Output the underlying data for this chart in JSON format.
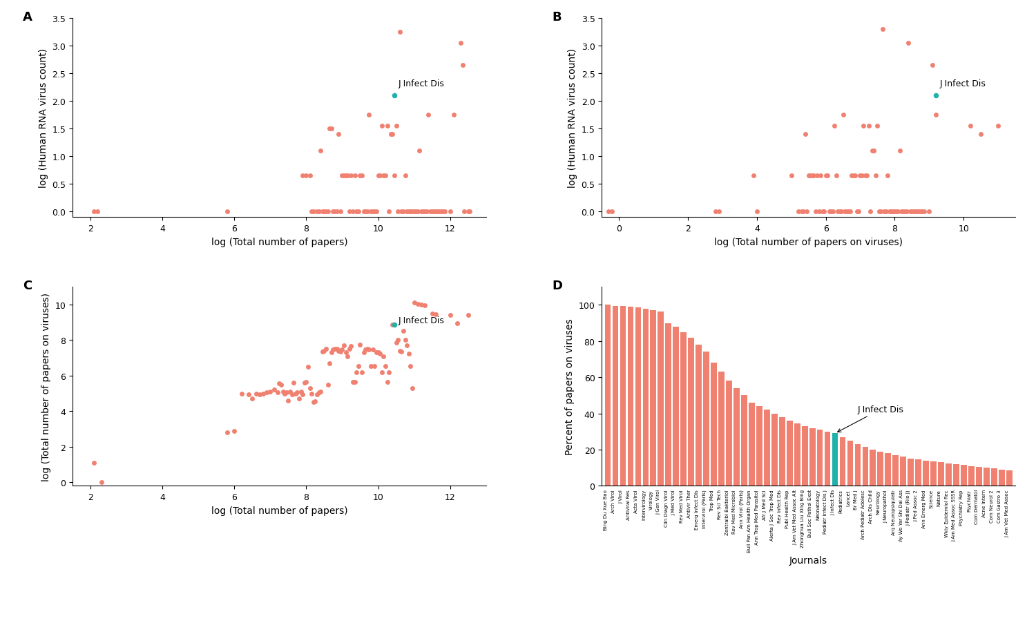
{
  "panel_A": {
    "title": "A",
    "xlabel": "log (Total number of papers)",
    "ylabel": "log (Human RNA virus count)",
    "scatter_color": "#F08070",
    "highlight_color": "#20B2AA",
    "highlight_label": "J Infect Dis",
    "x": [
      2.1,
      2.2,
      5.8,
      7.9,
      8.0,
      8.1,
      8.15,
      8.2,
      8.3,
      8.35,
      8.4,
      8.45,
      8.5,
      8.55,
      8.6,
      8.65,
      8.7,
      8.75,
      8.8,
      8.85,
      8.9,
      8.95,
      9.0,
      9.05,
      9.1,
      9.15,
      9.2,
      9.25,
      9.3,
      9.35,
      9.4,
      9.45,
      9.5,
      9.55,
      9.6,
      9.65,
      9.7,
      9.75,
      9.8,
      9.85,
      9.9,
      9.95,
      10.0,
      10.05,
      10.1,
      10.15,
      10.2,
      10.25,
      10.3,
      10.35,
      10.4,
      10.45,
      10.5,
      10.55,
      10.6,
      10.65,
      10.7,
      10.75,
      10.8,
      10.85,
      10.9,
      10.95,
      11.0,
      11.05,
      11.1,
      11.15,
      11.2,
      11.25,
      11.3,
      11.35,
      11.4,
      11.45,
      11.5,
      11.55,
      11.6,
      11.65,
      11.7,
      11.75,
      11.8,
      11.85,
      12.0,
      12.1,
      12.3,
      12.35,
      12.4,
      12.5,
      12.55
    ],
    "y": [
      0.0,
      0.0,
      0.0,
      0.65,
      0.65,
      0.65,
      0.0,
      0.0,
      0.0,
      0.0,
      1.1,
      0.0,
      0.0,
      0.0,
      0.0,
      1.5,
      1.5,
      0.0,
      0.0,
      0.0,
      1.4,
      0.0,
      0.65,
      0.65,
      0.65,
      0.65,
      0.0,
      0.65,
      0.0,
      0.65,
      0.0,
      0.0,
      0.65,
      0.65,
      0.0,
      0.0,
      0.0,
      1.75,
      0.0,
      0.0,
      0.0,
      0.0,
      0.65,
      0.65,
      1.55,
      0.65,
      0.65,
      1.55,
      0.0,
      1.4,
      1.4,
      0.65,
      1.55,
      0.0,
      3.25,
      0.0,
      0.0,
      0.65,
      0.0,
      0.0,
      0.0,
      0.0,
      0.0,
      0.0,
      0.0,
      1.1,
      0.0,
      0.0,
      0.0,
      0.0,
      1.75,
      0.0,
      0.0,
      0.0,
      0.0,
      0.0,
      0.0,
      0.0,
      0.0,
      0.0,
      0.0,
      1.75,
      3.05,
      2.65,
      0.0,
      0.0,
      0.0
    ],
    "highlight_x": 10.45,
    "highlight_y": 2.1,
    "xlim": [
      1.5,
      13.0
    ],
    "ylim": [
      -0.1,
      3.5
    ]
  },
  "panel_B": {
    "title": "B",
    "xlabel": "log (Total number of papers on viruses)",
    "ylabel": "log (Human RNA virus count)",
    "scatter_color": "#F08070",
    "highlight_color": "#20B2AA",
    "highlight_label": "J Infect Dis",
    "x": [
      -0.3,
      -0.2,
      2.8,
      2.9,
      3.9,
      4.0,
      5.0,
      5.2,
      5.3,
      5.35,
      5.4,
      5.45,
      5.5,
      5.55,
      5.6,
      5.65,
      5.7,
      5.75,
      5.8,
      5.85,
      5.9,
      5.95,
      6.0,
      6.05,
      6.1,
      6.15,
      6.2,
      6.25,
      6.3,
      6.35,
      6.4,
      6.45,
      6.5,
      6.55,
      6.6,
      6.65,
      6.7,
      6.75,
      6.8,
      6.85,
      6.9,
      6.95,
      7.0,
      7.05,
      7.1,
      7.15,
      7.2,
      7.25,
      7.3,
      7.35,
      7.4,
      7.45,
      7.5,
      7.55,
      7.6,
      7.65,
      7.7,
      7.75,
      7.8,
      7.85,
      7.9,
      7.95,
      8.0,
      8.05,
      8.1,
      8.15,
      8.2,
      8.25,
      8.3,
      8.35,
      8.4,
      8.45,
      8.5,
      8.55,
      8.6,
      8.65,
      8.7,
      8.75,
      8.8,
      8.85,
      9.0,
      9.1,
      9.2,
      10.2,
      10.5,
      11.0
    ],
    "y": [
      0.0,
      0.0,
      0.0,
      0.0,
      0.65,
      0.0,
      0.65,
      0.0,
      0.0,
      0.0,
      1.4,
      0.0,
      0.65,
      0.65,
      0.65,
      0.65,
      0.0,
      0.65,
      0.0,
      0.65,
      0.0,
      0.0,
      0.65,
      0.65,
      0.0,
      0.0,
      0.0,
      1.55,
      0.65,
      0.0,
      0.0,
      0.0,
      1.75,
      0.0,
      0.0,
      0.0,
      0.0,
      0.65,
      0.65,
      0.65,
      0.0,
      0.0,
      0.65,
      0.65,
      1.55,
      0.65,
      0.65,
      1.55,
      0.0,
      1.1,
      1.1,
      0.65,
      1.55,
      0.0,
      0.0,
      3.3,
      0.0,
      0.0,
      0.65,
      0.0,
      0.0,
      0.0,
      0.0,
      0.0,
      0.0,
      1.1,
      0.0,
      0.0,
      0.0,
      0.0,
      3.05,
      0.0,
      0.0,
      0.0,
      0.0,
      0.0,
      0.0,
      0.0,
      0.0,
      0.0,
      0.0,
      2.65,
      1.75,
      1.55,
      1.4,
      1.55
    ],
    "highlight_x": 9.2,
    "highlight_y": 2.1,
    "xlim": [
      -0.5,
      11.5
    ],
    "ylim": [
      -0.1,
      3.5
    ]
  },
  "panel_C": {
    "title": "C",
    "xlabel": "log (Total number of papers)",
    "ylabel": "log (Total number of papers on viruses)",
    "scatter_color": "#F08070",
    "highlight_color": "#20B2AA",
    "highlight_label": "J Infect Dis",
    "x": [
      2.1,
      2.3,
      5.8,
      6.0,
      6.2,
      6.4,
      6.5,
      6.6,
      6.7,
      6.8,
      6.9,
      7.0,
      7.1,
      7.2,
      7.25,
      7.3,
      7.35,
      7.4,
      7.45,
      7.5,
      7.55,
      7.6,
      7.65,
      7.7,
      7.75,
      7.8,
      7.85,
      7.9,
      7.95,
      8.0,
      8.05,
      8.1,
      8.15,
      8.2,
      8.25,
      8.3,
      8.35,
      8.4,
      8.45,
      8.5,
      8.55,
      8.6,
      8.65,
      8.7,
      8.75,
      8.8,
      8.85,
      8.9,
      8.95,
      9.0,
      9.05,
      9.1,
      9.15,
      9.2,
      9.25,
      9.3,
      9.35,
      9.4,
      9.45,
      9.5,
      9.55,
      9.6,
      9.65,
      9.7,
      9.75,
      9.8,
      9.85,
      9.9,
      9.95,
      10.0,
      10.05,
      10.1,
      10.15,
      10.2,
      10.25,
      10.3,
      10.4,
      10.5,
      10.55,
      10.6,
      10.65,
      10.7,
      10.75,
      10.8,
      10.85,
      10.9,
      10.95,
      11.0,
      11.1,
      11.2,
      11.3,
      11.5,
      11.6,
      12.0,
      12.2,
      12.5
    ],
    "y": [
      1.1,
      0.0,
      2.8,
      2.9,
      5.0,
      4.95,
      4.7,
      5.0,
      4.95,
      5.0,
      5.05,
      5.1,
      5.2,
      5.05,
      5.55,
      5.5,
      5.1,
      5.0,
      5.05,
      4.6,
      5.1,
      4.95,
      5.6,
      5.0,
      5.05,
      4.7,
      5.1,
      4.95,
      5.6,
      5.65,
      6.5,
      5.3,
      5.0,
      4.5,
      4.55,
      4.95,
      5.05,
      5.1,
      7.35,
      7.4,
      7.5,
      5.5,
      6.7,
      7.3,
      7.45,
      7.5,
      7.5,
      7.4,
      7.35,
      7.45,
      7.7,
      7.3,
      7.1,
      7.5,
      7.65,
      5.65,
      5.65,
      6.2,
      6.55,
      7.75,
      6.2,
      7.3,
      7.45,
      7.5,
      7.45,
      6.55,
      7.45,
      6.55,
      7.3,
      7.3,
      7.25,
      6.2,
      7.1,
      6.55,
      5.65,
      6.2,
      8.85,
      7.85,
      8.0,
      7.4,
      7.35,
      8.5,
      8.0,
      7.7,
      7.25,
      6.55,
      5.3,
      10.1,
      10.05,
      10.0,
      9.95,
      9.5,
      9.45,
      9.4,
      8.95,
      9.4
    ],
    "highlight_x": 10.45,
    "highlight_y": 8.85,
    "xlim": [
      1.5,
      13.0
    ],
    "ylim": [
      -0.2,
      11.0
    ]
  },
  "panel_D": {
    "title": "D",
    "xlabel": "Journals",
    "ylabel": "Percent of papers on viruses",
    "bar_color": "#F08070",
    "highlight_color": "#20B2AA",
    "highlight_label": "J Infect Dis",
    "highlight_index": 30,
    "journals": [
      "Bing Du Xue Bao",
      "Arch Virol",
      "J Virol",
      "Antiviral Res",
      "Acta Virol",
      "Intervirology",
      "Virology",
      "J Gen Virol",
      "Clin Diagn Virol",
      "J Med Virol",
      "Rev Med Virol",
      "Antivir Ther",
      "Emerg Infect Dis",
      "Intervirol (Paris)",
      "Trop Med",
      "Rev Sci Tech",
      "Zentralbl Bakteriol",
      "Rev Med Microbiol",
      "Ann Virol (Paris)",
      "Bull Pan Am Health Organ",
      "Ann Trop Med Parasitol",
      "Afr J Med Sci",
      "Alerta J Soc Trop Med",
      "Rev Infect Dis",
      "Publ Health Rep",
      "J Am Vet Med Assoc Alt",
      "Zhonghua Liu Xing Bing",
      "Bull Soc Pathol Exot",
      "Neonatology",
      "Pediatr Infect Dis J",
      "J Infect Dis",
      "Pediatrics",
      "Lancet",
      "Br Med J",
      "Arch Pediatr Adolesc",
      "Arch Dis Child",
      "Neurology",
      "J Neuropathol",
      "Arq Neuropsiquiatr",
      "Ay Wo Yar Shi Dai Ass",
      "J Pediatr (Rio J)",
      "J Ped Assoc 2",
      "Ann Emerg Med",
      "Science",
      "Nature",
      "Wkly Epidemiol Rec",
      "J Am Med Assoc SSSR",
      "Psychiatry Rep",
      "Psychiatr",
      "Com Dermatol",
      "Acne Intern",
      "Com Neurol 2",
      "Com Gastro 3",
      "J Am Vet Med Assoc"
    ],
    "values": [
      100.0,
      99.5,
      99.2,
      99.0,
      98.5,
      97.8,
      97.2,
      96.5,
      90.0,
      88.0,
      85.0,
      82.0,
      78.0,
      74.0,
      68.0,
      63.0,
      58.0,
      54.0,
      50.0,
      46.0,
      44.0,
      42.0,
      40.0,
      38.0,
      36.0,
      34.5,
      33.0,
      32.0,
      31.0,
      30.0,
      29.0,
      27.0,
      25.0,
      23.0,
      21.5,
      20.0,
      19.0,
      18.0,
      17.0,
      16.0,
      15.0,
      14.5,
      14.0,
      13.5,
      13.0,
      12.5,
      12.0,
      11.5,
      11.0,
      10.5,
      10.0,
      9.5,
      9.0,
      8.5
    ],
    "ylim": [
      0,
      110
    ]
  }
}
